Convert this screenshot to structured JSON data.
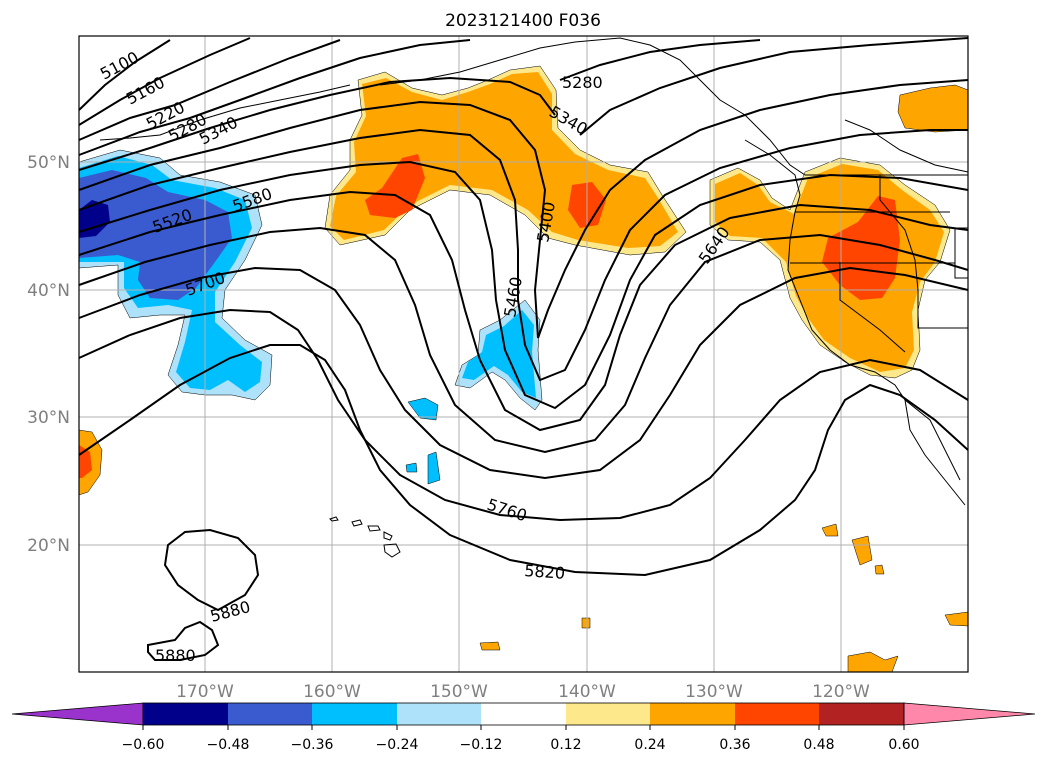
{
  "title": "2023121400 F036",
  "lat_labels": [
    "50°N",
    "40°N",
    "30°N",
    "20°N"
  ],
  "lon_labels": [
    "170°W",
    "160°W",
    "150°W",
    "140°W",
    "130°W",
    "120°W"
  ],
  "contour_labels": [
    "5100",
    "5160",
    "5220",
    "5280",
    "5340",
    "5280",
    "5340",
    "5400",
    "5460",
    "5520",
    "5580",
    "5640",
    "5700",
    "5760",
    "5820",
    "5880",
    "5880"
  ],
  "colorbar": {
    "tick_labels": [
      "−0.60",
      "−0.48",
      "−0.36",
      "−0.24",
      "−0.12",
      "0.12",
      "0.24",
      "0.36",
      "0.48",
      "0.60"
    ],
    "colors": [
      "#9933cc",
      "#00008b",
      "#3a5bd0",
      "#00bfff",
      "#aee2fa",
      "#ffffff",
      "#fde98b",
      "#ffa500",
      "#ff4500",
      "#b22222",
      "#ff88aa"
    ]
  },
  "colors": {
    "neg_light": "#aee2fa",
    "neg_medium": "#00bfff",
    "neg_strong": "#3a5bd0",
    "neg_deep": "#00008b",
    "pos_light": "#fde98b",
    "pos_medium": "#ffa500",
    "pos_strong": "#ff4500",
    "contour": "#000000",
    "grid": "#b0b0b0",
    "coast": "#000000"
  }
}
